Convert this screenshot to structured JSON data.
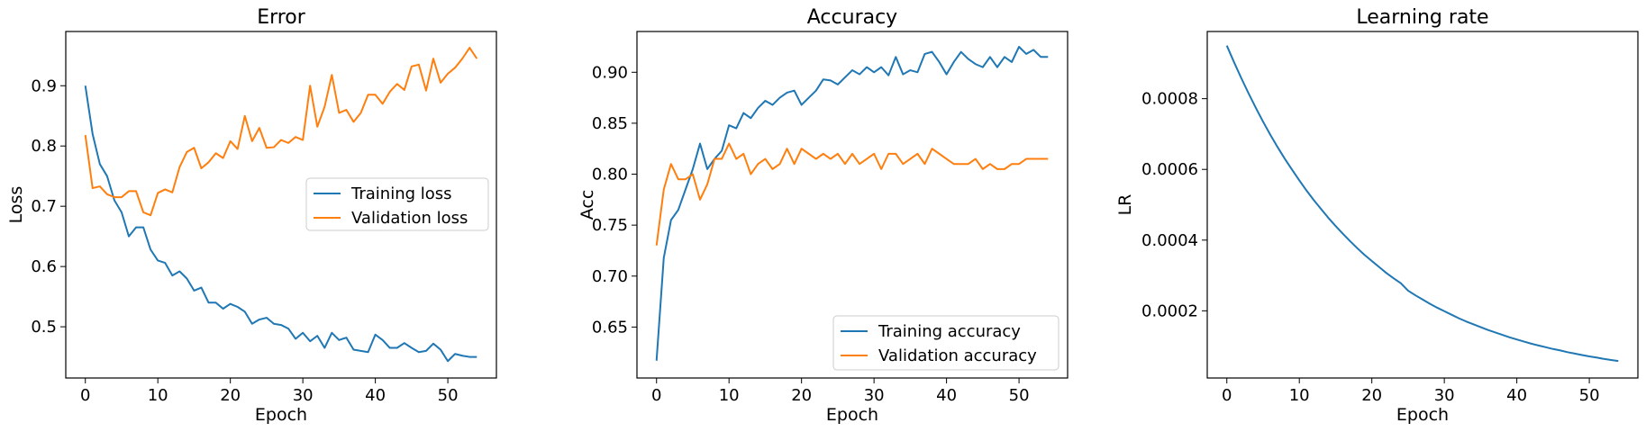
{
  "chart_data": [
    {
      "type": "line",
      "title": "Error",
      "xlabel": "Epoch",
      "ylabel": "Loss",
      "xlim": [
        -2.7,
        56.7
      ],
      "ylim": [
        0.415,
        0.99
      ],
      "xticks": [
        0,
        10,
        20,
        30,
        40,
        50
      ],
      "yticks": [
        0.5,
        0.6,
        0.7,
        0.8,
        0.9
      ],
      "ytick_labels": [
        "0.5",
        "0.6",
        "0.7",
        "0.8",
        "0.9"
      ],
      "legend": "center-right",
      "x": [
        0,
        1,
        2,
        3,
        4,
        5,
        6,
        7,
        8,
        9,
        10,
        11,
        12,
        13,
        14,
        15,
        16,
        17,
        18,
        19,
        20,
        21,
        22,
        23,
        24,
        25,
        26,
        27,
        28,
        29,
        30,
        31,
        32,
        33,
        34,
        35,
        36,
        37,
        38,
        39,
        40,
        41,
        42,
        43,
        44,
        45,
        46,
        47,
        48,
        49,
        50,
        51,
        52,
        53,
        54
      ],
      "series": [
        {
          "name": "Training loss",
          "color": "#1f77b4",
          "values": [
            0.9,
            0.82,
            0.77,
            0.75,
            0.71,
            0.69,
            0.65,
            0.665,
            0.665,
            0.628,
            0.61,
            0.606,
            0.585,
            0.592,
            0.58,
            0.56,
            0.565,
            0.54,
            0.54,
            0.53,
            0.538,
            0.533,
            0.525,
            0.505,
            0.512,
            0.515,
            0.505,
            0.503,
            0.497,
            0.48,
            0.49,
            0.476,
            0.485,
            0.465,
            0.49,
            0.478,
            0.482,
            0.462,
            0.46,
            0.458,
            0.487,
            0.478,
            0.465,
            0.465,
            0.473,
            0.465,
            0.458,
            0.46,
            0.472,
            0.462,
            0.443,
            0.455,
            0.452,
            0.45,
            0.45
          ]
        },
        {
          "name": "Validation loss",
          "color": "#ff7f0e",
          "values": [
            0.818,
            0.73,
            0.733,
            0.72,
            0.715,
            0.715,
            0.725,
            0.725,
            0.69,
            0.685,
            0.722,
            0.728,
            0.723,
            0.765,
            0.79,
            0.797,
            0.763,
            0.773,
            0.788,
            0.78,
            0.808,
            0.795,
            0.85,
            0.808,
            0.83,
            0.797,
            0.798,
            0.81,
            0.805,
            0.815,
            0.81,
            0.9,
            0.832,
            0.865,
            0.918,
            0.855,
            0.86,
            0.84,
            0.855,
            0.885,
            0.885,
            0.87,
            0.89,
            0.903,
            0.893,
            0.932,
            0.935,
            0.892,
            0.945,
            0.905,
            0.92,
            0.93,
            0.945,
            0.963,
            0.945
          ]
        }
      ]
    },
    {
      "type": "line",
      "title": "Accuracy",
      "xlabel": "Epoch",
      "ylabel": "Acc",
      "xlim": [
        -2.7,
        56.7
      ],
      "ylim": [
        0.6,
        0.94
      ],
      "xticks": [
        0,
        10,
        20,
        30,
        40,
        50
      ],
      "yticks": [
        0.65,
        0.7,
        0.75,
        0.8,
        0.85,
        0.9
      ],
      "ytick_labels": [
        "0.65",
        "0.70",
        "0.75",
        "0.80",
        "0.85",
        "0.90"
      ],
      "legend": "lower-right",
      "x": [
        0,
        1,
        2,
        3,
        4,
        5,
        6,
        7,
        8,
        9,
        10,
        11,
        12,
        13,
        14,
        15,
        16,
        17,
        18,
        19,
        20,
        21,
        22,
        23,
        24,
        25,
        26,
        27,
        28,
        29,
        30,
        31,
        32,
        33,
        34,
        35,
        36,
        37,
        38,
        39,
        40,
        41,
        42,
        43,
        44,
        45,
        46,
        47,
        48,
        49,
        50,
        51,
        52,
        53,
        54
      ],
      "series": [
        {
          "name": "Training accuracy",
          "color": "#1f77b4",
          "values": [
            0.617,
            0.718,
            0.755,
            0.765,
            0.785,
            0.805,
            0.83,
            0.805,
            0.815,
            0.823,
            0.848,
            0.845,
            0.86,
            0.855,
            0.865,
            0.872,
            0.868,
            0.875,
            0.88,
            0.882,
            0.868,
            0.875,
            0.882,
            0.893,
            0.892,
            0.888,
            0.895,
            0.902,
            0.898,
            0.905,
            0.9,
            0.905,
            0.897,
            0.915,
            0.898,
            0.902,
            0.9,
            0.918,
            0.92,
            0.91,
            0.898,
            0.91,
            0.92,
            0.913,
            0.908,
            0.905,
            0.915,
            0.905,
            0.915,
            0.91,
            0.925,
            0.918,
            0.922,
            0.915,
            0.915
          ]
        },
        {
          "name": "Validation accuracy",
          "color": "#ff7f0e",
          "values": [
            0.73,
            0.785,
            0.81,
            0.795,
            0.795,
            0.8,
            0.775,
            0.79,
            0.815,
            0.815,
            0.83,
            0.815,
            0.82,
            0.8,
            0.81,
            0.815,
            0.805,
            0.81,
            0.825,
            0.81,
            0.825,
            0.82,
            0.815,
            0.82,
            0.815,
            0.82,
            0.81,
            0.82,
            0.81,
            0.815,
            0.82,
            0.805,
            0.82,
            0.82,
            0.81,
            0.815,
            0.82,
            0.81,
            0.825,
            0.82,
            0.815,
            0.81,
            0.81,
            0.81,
            0.815,
            0.805,
            0.81,
            0.805,
            0.805,
            0.81,
            0.81,
            0.815,
            0.815,
            0.815,
            0.815
          ]
        }
      ]
    },
    {
      "type": "line",
      "title": "Learning rate",
      "xlabel": "Epoch",
      "ylabel": "LR",
      "xlim": [
        -2.7,
        56.7
      ],
      "ylim": [
        1e-05,
        0.00099
      ],
      "xticks": [
        0,
        10,
        20,
        30,
        40,
        50
      ],
      "yticks": [
        0.0002,
        0.0004,
        0.0006,
        0.0008
      ],
      "ytick_labels": [
        "0.0002",
        "0.0004",
        "0.0006",
        "0.0008"
      ],
      "legend": "none",
      "x": [
        0,
        1,
        2,
        3,
        4,
        5,
        6,
        7,
        8,
        9,
        10,
        11,
        12,
        13,
        14,
        15,
        16,
        17,
        18,
        19,
        20,
        21,
        22,
        23,
        24,
        25,
        26,
        27,
        28,
        29,
        30,
        31,
        32,
        33,
        34,
        35,
        36,
        37,
        38,
        39,
        40,
        41,
        42,
        43,
        44,
        45,
        46,
        47,
        48,
        49,
        50,
        51,
        52,
        53,
        54
      ],
      "series": [
        {
          "color": "#1f77b4",
          "values": [
            0.00095,
            0.000903,
            0.000858,
            0.000815,
            0.000774,
            0.000735,
            0.000698,
            0.000663,
            0.00063,
            0.000599,
            0.000569,
            0.00054,
            0.000513,
            0.000488,
            0.000463,
            0.00044,
            0.000418,
            0.000397,
            0.000377,
            0.000358,
            0.000341,
            0.000324,
            0.000307,
            0.000292,
            0.000278,
            0.000257,
            0.000244,
            0.000232,
            0.00022,
            0.000209,
            0.000199,
            0.000189,
            0.000179,
            0.00017,
            0.000162,
            0.000154,
            0.000146,
            0.000139,
            0.000132,
            0.000125,
            0.000119,
            0.000113,
            0.000107,
            0.000102,
            9.7e-05,
            9.2e-05,
            8.8e-05,
            8.3e-05,
            7.9e-05,
            7.5e-05,
            7.1e-05,
            6.8e-05,
            6.4e-05,
            6.1e-05,
            5.8e-05
          ]
        }
      ]
    }
  ]
}
